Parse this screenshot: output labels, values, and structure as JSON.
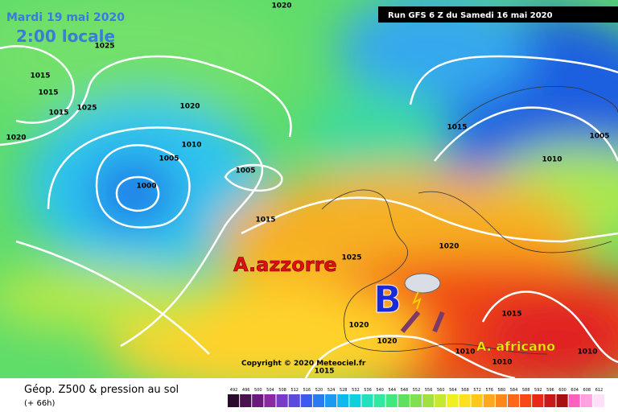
{
  "header": {
    "date": "Mardi 19 mai 2020",
    "time": "2:00 locale",
    "run": "Run GFS 6 Z du Samedi 16 mai 2020"
  },
  "annotations": {
    "high_azores": "A.azzorre",
    "low": "B",
    "high_africa": "A. africano",
    "copyright": "Copyright © 2020 Meteociel.fr"
  },
  "isobar_labels": [
    "1020",
    "1025",
    "1015",
    "1015",
    "1015",
    "1025",
    "1020",
    "1020",
    "1010",
    "1005",
    "1005",
    "1000",
    "1015",
    "1015",
    "1005",
    "1010",
    "1020",
    "1025",
    "1020",
    "1020",
    "1015",
    "1010",
    "1010",
    "1010",
    "1015"
  ],
  "legend": {
    "title": "Géop. Z500 & pression au sol",
    "lead": "(+ 66h)",
    "scale": [
      "492",
      "496",
      "500",
      "504",
      "508",
      "512",
      "516",
      "520",
      "524",
      "528",
      "532",
      "536",
      "540",
      "544",
      "548",
      "552",
      "556",
      "560",
      "564",
      "568",
      "572",
      "576",
      "580",
      "584",
      "588",
      "592",
      "596",
      "600",
      "604",
      "608",
      "612"
    ]
  }
}
